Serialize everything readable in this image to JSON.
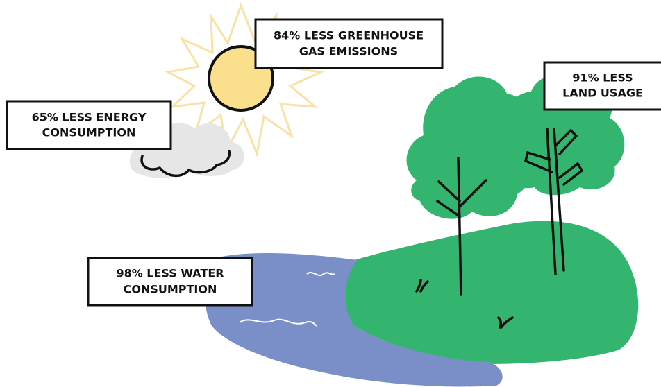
{
  "labels": [
    {
      "lines": [
        "84% LESS GREENHOUSE",
        "GAS EMISSIONS"
      ]
    },
    {
      "lines": [
        "65% LESS ENERGY",
        "CONSUMPTION"
      ]
    },
    {
      "lines": [
        "91% LESS",
        "LAND USAGE"
      ]
    },
    {
      "lines": [
        "98% LESS WATER",
        "CONSUMPTION"
      ]
    }
  ]
}
